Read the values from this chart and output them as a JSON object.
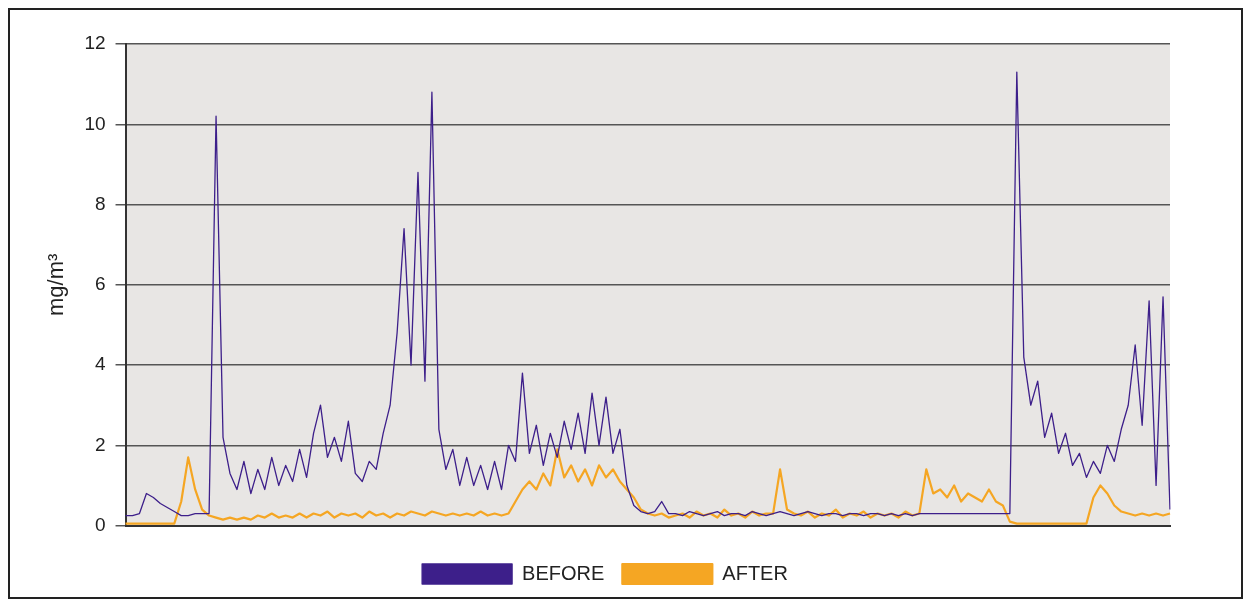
{
  "chart_data": {
    "type": "line",
    "ylabel": "mg/m³",
    "ylim": [
      0,
      12
    ],
    "yticks": [
      0,
      2,
      4,
      6,
      8,
      10,
      12
    ],
    "grid": "y",
    "legend": "bottom",
    "marker": "none",
    "line_style": "solid",
    "categories": [
      null,
      null,
      null,
      null,
      null,
      null,
      null,
      null,
      null,
      null,
      null,
      null,
      null,
      null,
      null,
      null,
      null,
      null,
      null,
      null,
      null,
      null,
      null,
      null,
      null,
      null,
      null,
      null,
      null,
      null,
      null,
      null,
      null,
      null,
      null,
      null,
      null,
      null,
      null,
      null,
      null,
      null,
      null,
      null,
      null,
      null,
      null,
      null,
      null,
      null,
      null,
      null,
      null,
      null,
      null,
      null,
      null,
      null,
      null,
      null,
      null,
      null,
      null,
      null,
      null,
      null,
      null,
      null,
      null,
      null,
      null,
      null,
      null,
      null,
      null,
      null,
      null,
      null,
      null,
      null,
      null,
      null,
      null,
      null,
      null,
      null,
      null,
      null,
      null,
      null,
      null,
      null,
      null,
      null,
      null,
      null,
      null,
      null,
      null,
      null,
      null,
      null,
      null,
      null,
      null,
      null,
      null,
      null,
      null,
      null,
      null,
      null,
      null,
      null,
      null,
      null,
      null,
      null,
      null,
      null,
      null,
      null,
      null,
      null,
      null,
      null,
      null,
      null,
      null,
      null,
      null,
      null,
      null,
      null,
      null,
      null,
      null,
      null,
      null,
      null,
      null,
      null,
      null,
      null,
      null,
      null,
      null,
      null,
      null,
      null,
      null
    ],
    "series": [
      {
        "name": "BEFORE",
        "color": "#3d1f8a",
        "values": [
          0.25,
          0.25,
          0.3,
          0.8,
          0.7,
          0.55,
          0.45,
          0.35,
          0.25,
          0.25,
          0.3,
          0.3,
          0.3,
          10.2,
          2.2,
          1.3,
          0.9,
          1.6,
          0.8,
          1.4,
          0.9,
          1.7,
          1.0,
          1.5,
          1.1,
          1.9,
          1.2,
          2.3,
          3.0,
          1.7,
          2.2,
          1.6,
          2.6,
          1.3,
          1.1,
          1.6,
          1.4,
          2.3,
          3.0,
          4.8,
          7.4,
          4.0,
          8.8,
          3.6,
          10.8,
          2.4,
          1.4,
          1.9,
          1.0,
          1.7,
          1.0,
          1.5,
          0.9,
          1.6,
          0.9,
          2.0,
          1.6,
          3.8,
          1.8,
          2.5,
          1.5,
          2.3,
          1.7,
          2.6,
          1.9,
          2.8,
          1.8,
          3.3,
          2.0,
          3.2,
          1.8,
          2.4,
          1.0,
          0.5,
          0.35,
          0.3,
          0.35,
          0.6,
          0.3,
          0.3,
          0.25,
          0.35,
          0.3,
          0.25,
          0.3,
          0.35,
          0.25,
          0.3,
          0.3,
          0.25,
          0.35,
          0.3,
          0.25,
          0.3,
          0.35,
          0.3,
          0.25,
          0.3,
          0.35,
          0.3,
          0.25,
          0.3,
          0.3,
          0.25,
          0.3,
          0.3,
          0.25,
          0.3,
          0.3,
          0.25,
          0.3,
          0.25,
          0.3,
          0.25,
          0.3,
          0.3,
          0.3,
          0.3,
          0.3,
          0.3,
          0.3,
          0.3,
          0.3,
          0.3,
          0.3,
          0.3,
          0.3,
          0.3,
          11.3,
          4.2,
          3.0,
          3.6,
          2.2,
          2.8,
          1.8,
          2.3,
          1.5,
          1.8,
          1.2,
          1.6,
          1.3,
          2.0,
          1.6,
          2.4,
          3.0,
          4.5,
          2.5,
          5.6,
          1.0,
          5.7,
          0.4
        ]
      },
      {
        "name": "AFTER",
        "color": "#f5a623",
        "values": [
          0.05,
          0.05,
          0.05,
          0.05,
          0.05,
          0.05,
          0.05,
          0.05,
          0.6,
          1.7,
          0.9,
          0.4,
          0.25,
          0.2,
          0.15,
          0.2,
          0.15,
          0.2,
          0.15,
          0.25,
          0.2,
          0.3,
          0.2,
          0.25,
          0.2,
          0.3,
          0.2,
          0.3,
          0.25,
          0.35,
          0.2,
          0.3,
          0.25,
          0.3,
          0.2,
          0.35,
          0.25,
          0.3,
          0.2,
          0.3,
          0.25,
          0.35,
          0.3,
          0.25,
          0.35,
          0.3,
          0.25,
          0.3,
          0.25,
          0.3,
          0.25,
          0.35,
          0.25,
          0.3,
          0.25,
          0.3,
          0.6,
          0.9,
          1.1,
          0.9,
          1.3,
          1.0,
          1.9,
          1.2,
          1.5,
          1.1,
          1.4,
          1.0,
          1.5,
          1.2,
          1.4,
          1.1,
          0.9,
          0.7,
          0.4,
          0.3,
          0.25,
          0.3,
          0.2,
          0.25,
          0.3,
          0.2,
          0.35,
          0.25,
          0.3,
          0.2,
          0.4,
          0.25,
          0.3,
          0.2,
          0.35,
          0.25,
          0.3,
          0.3,
          1.4,
          0.4,
          0.3,
          0.25,
          0.35,
          0.2,
          0.3,
          0.25,
          0.4,
          0.2,
          0.3,
          0.25,
          0.35,
          0.2,
          0.3,
          0.25,
          0.3,
          0.2,
          0.35,
          0.25,
          0.3,
          1.4,
          0.8,
          0.9,
          0.7,
          1.0,
          0.6,
          0.8,
          0.7,
          0.6,
          0.9,
          0.6,
          0.5,
          0.1,
          0.05,
          0.05,
          0.05,
          0.05,
          0.05,
          0.05,
          0.05,
          0.05,
          0.05,
          0.05,
          0.05,
          0.7,
          1.0,
          0.8,
          0.5,
          0.35,
          0.3,
          0.25,
          0.3,
          0.25,
          0.3,
          0.25,
          0.3
        ]
      }
    ]
  }
}
